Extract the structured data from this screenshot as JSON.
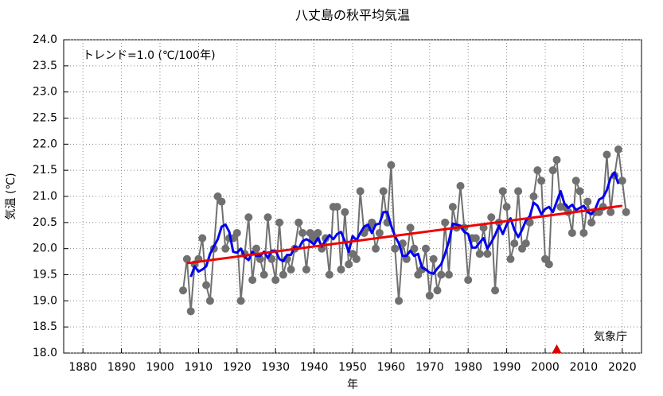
{
  "chart_data": {
    "type": "line",
    "title": "八丈島の秋平均気温",
    "x_label": "年",
    "y_label": "気温 (℃)",
    "annotations": [
      "トレンド=1.0 (℃/100年)",
      "気象庁"
    ],
    "xlim": [
      1875,
      2025
    ],
    "xticks": [
      1880,
      1890,
      1900,
      1910,
      1920,
      1930,
      1940,
      1950,
      1960,
      1970,
      1980,
      1990,
      2000,
      2010,
      2020
    ],
    "ylim": [
      18,
      24
    ],
    "yticks": [
      {
        "value": 18,
        "label": "18.0"
      },
      18.5,
      {
        "value": 19,
        "label": "19.0"
      },
      19.5,
      {
        "value": 20,
        "label": "20.0"
      },
      20.5,
      {
        "value": 21,
        "label": "21.0"
      },
      21.5,
      {
        "value": 22,
        "label": "22.0"
      },
      22.5,
      {
        "value": 23,
        "label": "23.0"
      },
      23.5,
      {
        "value": 24,
        "label": "24.0"
      }
    ],
    "grid": true,
    "relocation_years": [
      2003
    ],
    "relocation_color": "#dd0000",
    "series": [
      {
        "color": "#707070",
        "markers": true,
        "x": [
          1906,
          1907,
          1908,
          1909,
          1910,
          1911,
          1912,
          1913,
          1914,
          1915,
          1916,
          1917,
          1918,
          1919,
          1920,
          1921,
          1922,
          1923,
          1924,
          1925,
          1926,
          1927,
          1928,
          1929,
          1930,
          1931,
          1932,
          1933,
          1934,
          1935,
          1936,
          1937,
          1938,
          1939,
          1940,
          1941,
          1942,
          1943,
          1944,
          1945,
          1946,
          1947,
          1948,
          1949,
          1950,
          1951,
          1952,
          1953,
          1954,
          1955,
          1956,
          1957,
          1958,
          1959,
          1960,
          1961,
          1962,
          1963,
          1964,
          1965,
          1966,
          1967,
          1968,
          1969,
          1970,
          1971,
          1972,
          1973,
          1974,
          1975,
          1976,
          1977,
          1978,
          1979,
          1980,
          1981,
          1982,
          1983,
          1984,
          1985,
          1986,
          1987,
          1988,
          1989,
          1990,
          1991,
          1992,
          1993,
          1994,
          1995,
          1996,
          1997,
          1998,
          1999,
          2000,
          2001,
          2002,
          2003,
          2004,
          2005,
          2006,
          2007,
          2008,
          2009,
          2010,
          2011,
          2012,
          2013,
          2014,
          2015,
          2016,
          2017,
          2018,
          2019,
          2020,
          2021
        ],
        "values": [
          19.2,
          19.8,
          18.8,
          19.7,
          19.8,
          20.2,
          19.3,
          19.0,
          20.0,
          21.0,
          20.9,
          20.0,
          20.2,
          20.2,
          20.3,
          19.0,
          19.9,
          20.6,
          19.4,
          20.0,
          19.8,
          19.5,
          20.6,
          19.8,
          19.4,
          20.5,
          19.5,
          19.8,
          19.6,
          20.0,
          20.5,
          20.3,
          19.6,
          20.3,
          20.2,
          20.3,
          20.0,
          20.2,
          19.5,
          20.8,
          20.8,
          19.6,
          20.7,
          19.7,
          19.9,
          19.8,
          21.1,
          20.3,
          20.4,
          20.5,
          20.0,
          20.3,
          21.1,
          20.5,
          21.6,
          20.0,
          19.0,
          20.1,
          19.8,
          20.4,
          20.0,
          19.5,
          19.6,
          20.0,
          19.1,
          19.8,
          19.2,
          19.5,
          20.5,
          19.5,
          20.8,
          20.4,
          21.2,
          20.4,
          19.4,
          20.2,
          20.2,
          19.9,
          20.4,
          19.9,
          20.6,
          19.2,
          20.5,
          21.1,
          20.8,
          19.8,
          20.1,
          21.1,
          20.0,
          20.1,
          20.5,
          21.0,
          21.5,
          21.3,
          19.8,
          19.7,
          21.5,
          21.7,
          20.8,
          20.8,
          20.7,
          20.3,
          21.3,
          21.1,
          20.3,
          20.9,
          20.5,
          20.7,
          20.7,
          20.8,
          21.8,
          20.7,
          21.4,
          21.9,
          21.3,
          20.7
        ]
      },
      {
        "color": "#0000ee",
        "markers": false,
        "x": [
          1908,
          1909,
          1910,
          1911,
          1912,
          1913,
          1914,
          1915,
          1916,
          1917,
          1918,
          1919,
          1920,
          1921,
          1922,
          1923,
          1924,
          1925,
          1926,
          1927,
          1928,
          1929,
          1930,
          1931,
          1932,
          1933,
          1934,
          1935,
          1936,
          1937,
          1938,
          1939,
          1940,
          1941,
          1942,
          1943,
          1944,
          1945,
          1946,
          1947,
          1948,
          1949,
          1950,
          1951,
          1952,
          1953,
          1954,
          1955,
          1956,
          1957,
          1958,
          1959,
          1960,
          1961,
          1962,
          1963,
          1964,
          1965,
          1966,
          1967,
          1968,
          1969,
          1970,
          1971,
          1972,
          1973,
          1974,
          1975,
          1976,
          1977,
          1978,
          1979,
          1980,
          1981,
          1982,
          1983,
          1984,
          1985,
          1986,
          1987,
          1988,
          1989,
          1990,
          1991,
          1992,
          1993,
          1994,
          1995,
          1996,
          1997,
          1998,
          1999,
          2000,
          2001,
          2002,
          2003,
          2004,
          2005,
          2006,
          2007,
          2008,
          2009,
          2010,
          2011,
          2012,
          2013,
          2014,
          2015,
          2016,
          2017,
          2018,
          2019
        ],
        "values": [
          19.46,
          19.66,
          19.56,
          19.6,
          19.66,
          19.9,
          20.04,
          20.18,
          20.42,
          20.46,
          20.32,
          19.94,
          19.92,
          20.0,
          19.84,
          19.78,
          19.94,
          19.86,
          19.86,
          19.94,
          19.82,
          19.96,
          19.96,
          19.8,
          19.76,
          19.88,
          19.88,
          20.04,
          20.0,
          20.14,
          20.18,
          20.14,
          20.08,
          20.2,
          20.04,
          20.16,
          20.26,
          20.18,
          20.28,
          20.32,
          20.14,
          19.94,
          20.24,
          20.16,
          20.3,
          20.42,
          20.46,
          20.3,
          20.46,
          20.48,
          20.7,
          20.7,
          20.44,
          20.24,
          20.1,
          19.86,
          19.86,
          19.96,
          19.86,
          19.9,
          19.64,
          19.6,
          19.54,
          19.52,
          19.62,
          19.7,
          19.9,
          20.14,
          20.48,
          20.46,
          20.44,
          20.32,
          20.28,
          20.02,
          20.02,
          20.12,
          20.2,
          20.0,
          20.12,
          20.26,
          20.44,
          20.28,
          20.46,
          20.58,
          20.36,
          20.22,
          20.36,
          20.54,
          20.62,
          20.88,
          20.82,
          20.66,
          20.76,
          20.8,
          20.7,
          20.9,
          21.1,
          20.86,
          20.78,
          20.84,
          20.74,
          20.78,
          20.82,
          20.7,
          20.66,
          20.76,
          20.94,
          20.98,
          21.12,
          21.36,
          21.46,
          21.24
        ]
      },
      {
        "color": "#ee0000",
        "markers": false,
        "x": [
          1907,
          2020
        ],
        "values": [
          19.72,
          20.82
        ]
      }
    ]
  }
}
